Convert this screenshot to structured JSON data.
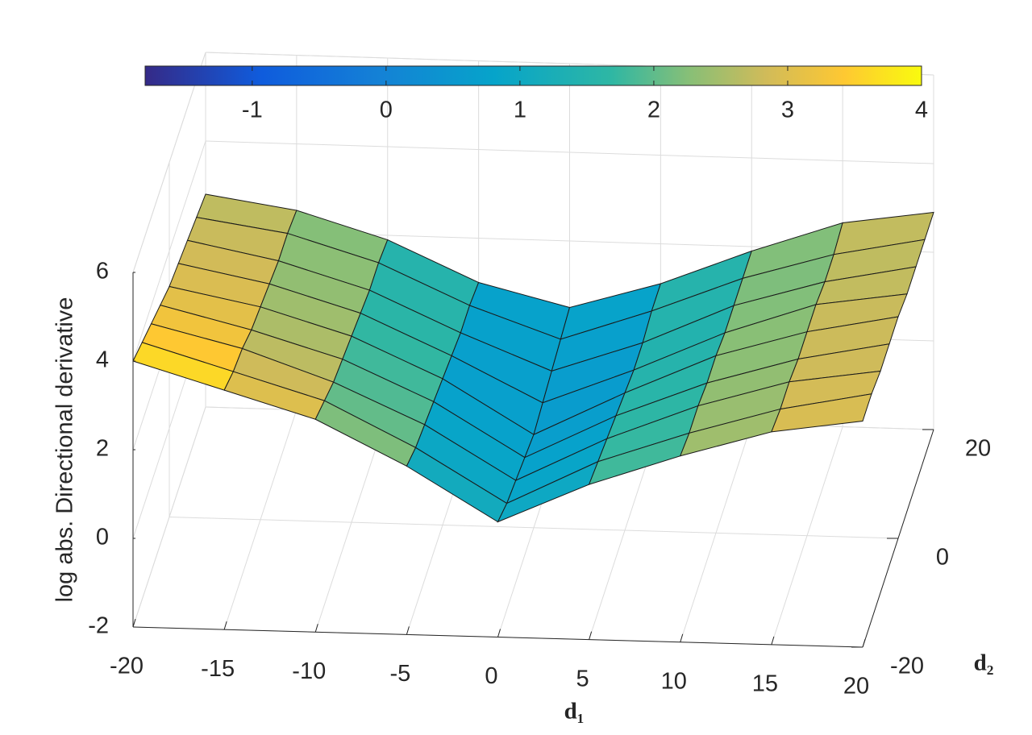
{
  "chart_data": {
    "type": "surface",
    "xlabel": "d₁",
    "ylabel": "d₂",
    "zlabel": "log abs. Directional derivative",
    "x": [
      -20,
      -15,
      -10,
      -5,
      0,
      5,
      10,
      15,
      20
    ],
    "y": [
      -20,
      -15,
      -10,
      -5,
      0,
      5,
      10,
      15,
      20
    ],
    "z": [
      [
        4.0,
        3.4,
        2.8,
        1.8,
        0.6,
        1.5,
        2.2,
        2.8,
        3.1
      ],
      [
        3.8,
        3.2,
        2.6,
        1.6,
        0.4,
        1.4,
        2.1,
        2.7,
        3.1
      ],
      [
        3.6,
        3.1,
        2.4,
        1.5,
        0.3,
        1.3,
        2.1,
        2.7,
        3.0
      ],
      [
        3.4,
        2.9,
        2.3,
        1.4,
        0.2,
        1.2,
        2.0,
        2.6,
        3.0
      ],
      [
        3.2,
        2.8,
        2.2,
        1.3,
        0.1,
        1.1,
        2.0,
        2.6,
        3.0
      ],
      [
        3.1,
        2.7,
        2.1,
        1.2,
        0.2,
        1.0,
        1.9,
        2.6,
        2.9
      ],
      [
        3.0,
        2.6,
        2.0,
        1.1,
        0.3,
        1.0,
        1.9,
        2.5,
        2.9
      ],
      [
        2.9,
        2.6,
        2.0,
        1.1,
        0.4,
        1.1,
        1.9,
        2.5,
        2.9
      ],
      [
        2.8,
        2.5,
        1.9,
        1.0,
        0.5,
        1.1,
        1.9,
        2.6,
        2.9
      ]
    ],
    "xlim": [
      -20,
      20
    ],
    "ylim": [
      -20,
      20
    ],
    "zlim": [
      -2,
      6
    ],
    "xticks": [
      -20,
      -15,
      -10,
      -5,
      0,
      5,
      10,
      15,
      20
    ],
    "yticks": [
      -20,
      0,
      20
    ],
    "zticks": [
      -2,
      0,
      2,
      4,
      6
    ],
    "grid": true,
    "colormap": "parula",
    "clim": [
      -1.8,
      4
    ],
    "cticks": [
      -1,
      0,
      1,
      2,
      3,
      4
    ]
  }
}
